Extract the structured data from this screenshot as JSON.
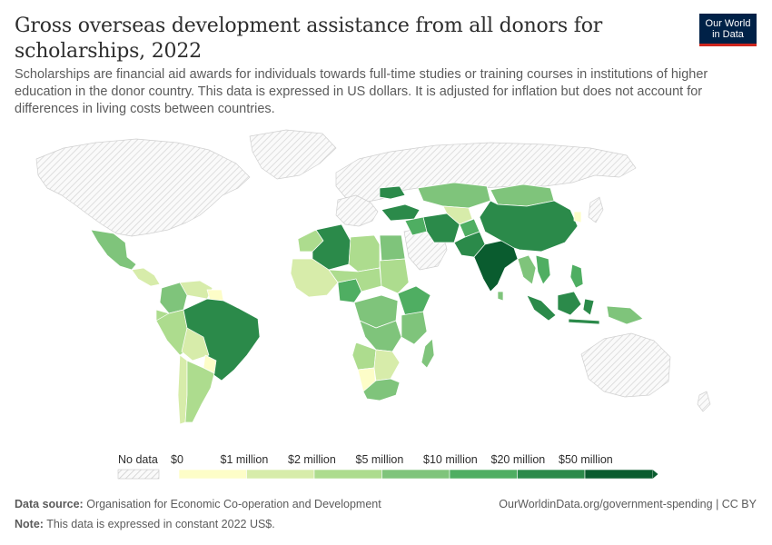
{
  "header": {
    "title": "Gross overseas development assistance from all donors for scholarships, 2022",
    "subtitle": "Scholarships are financial aid awards for individuals towards full-time studies or training courses in institutions of higher education in the donor country. This data is expressed in US dollars. It is adjusted for inflation but does not account for differences in living costs between countries.",
    "logo_line1": "Our World",
    "logo_line2": "in Data"
  },
  "legend": {
    "no_data_label": "No data",
    "bins": [
      "$0",
      "$1 million",
      "$2 million",
      "$5 million",
      "$10 million",
      "$20 million",
      "$50 million"
    ],
    "colors": [
      "#fdfdc8",
      "#d7ecaa",
      "#addc8e",
      "#7fc47b",
      "#4fae62",
      "#2b8a4a",
      "#0a5c2f"
    ],
    "no_data_color": "#e6e6e6"
  },
  "map_regions": [
    {
      "name": "Mexico",
      "bin": 3
    },
    {
      "name": "Brazil",
      "bin": 5
    },
    {
      "name": "Colombia",
      "bin": 3
    },
    {
      "name": "Peru",
      "bin": 2
    },
    {
      "name": "Argentina",
      "bin": 2
    },
    {
      "name": "Bolivia",
      "bin": 1
    },
    {
      "name": "Chile",
      "bin": 1
    },
    {
      "name": "Algeria",
      "bin": 5
    },
    {
      "name": "Libya",
      "bin": 2
    },
    {
      "name": "Egypt",
      "bin": 3
    },
    {
      "name": "Sudan",
      "bin": 2
    },
    {
      "name": "Nigeria",
      "bin": 4
    },
    {
      "name": "Ethiopia",
      "bin": 4
    },
    {
      "name": "DR Congo",
      "bin": 3
    },
    {
      "name": "South Africa",
      "bin": 3
    },
    {
      "name": "Angola",
      "bin": 2
    },
    {
      "name": "Namibia",
      "bin": 0
    },
    {
      "name": "Kazakhstan",
      "bin": 3
    },
    {
      "name": "Mongolia",
      "bin": 3
    },
    {
      "name": "China",
      "bin": 5
    },
    {
      "name": "India",
      "bin": 6
    },
    {
      "name": "Pakistan",
      "bin": 5
    },
    {
      "name": "Iran",
      "bin": 5
    },
    {
      "name": "Turkey",
      "bin": 5
    },
    {
      "name": "Indonesia",
      "bin": 5
    },
    {
      "name": "Vietnam",
      "bin": 5
    },
    {
      "name": "Papua New Guinea",
      "bin": 3
    }
  ],
  "footer": {
    "source_label": "Data source:",
    "source": "Organisation for Economic Co-operation and Development",
    "note_label": "Note:",
    "note": "This data is expressed in constant 2022 US$.",
    "url": "OurWorldinData.org/government-spending | CC BY"
  }
}
